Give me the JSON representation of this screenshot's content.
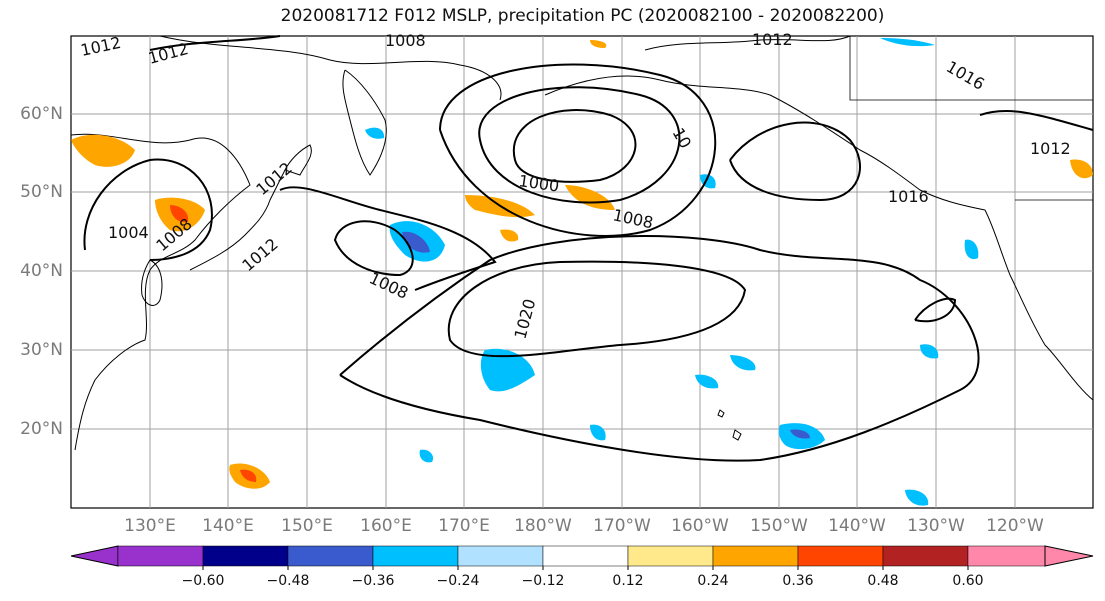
{
  "title": "2020081712 F012 MSLP, precipitation PC (2020082100 - 2020082200)",
  "lat_labels": [
    "60°N",
    "50°N",
    "40°N",
    "30°N",
    "20°N"
  ],
  "lon_labels": [
    "130°E",
    "140°E",
    "150°E",
    "160°E",
    "170°E",
    "180°W",
    "170°W",
    "160°W",
    "150°W",
    "140°W",
    "130°W",
    "120°W"
  ],
  "colorbar": {
    "ticks": [
      "−0.60",
      "−0.48",
      "−0.36",
      "−0.24",
      "−0.12",
      "0.12",
      "0.24",
      "0.36",
      "0.48",
      "0.60"
    ],
    "colors": [
      "#9932cc",
      "#00008b",
      "#3a5bcd",
      "#00bfff",
      "#b0e2ff",
      "#ffffff",
      "#ffe98a",
      "#ffa500",
      "#ff4500",
      "#b22222",
      "#ff88aa"
    ]
  },
  "contour_labels": [
    "1012",
    "1012",
    "1008",
    "1012",
    "1016",
    "1012",
    "1000",
    "1008",
    "1016",
    "1004",
    "1008",
    "1012",
    "1012",
    "1008",
    "1020",
    "10"
  ],
  "map": {
    "type": "MSLP contours with precipitation PC shading",
    "projection": "cylindrical",
    "lat_range": [
      10,
      70
    ],
    "lon_range": [
      120,
      250
    ]
  }
}
